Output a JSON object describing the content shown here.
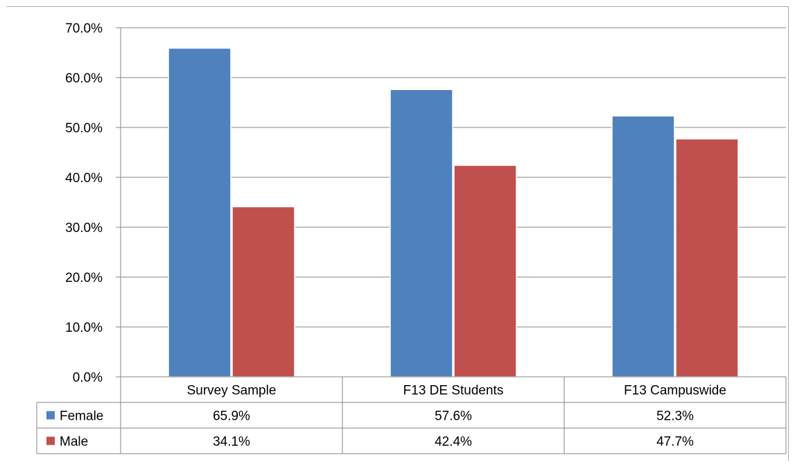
{
  "chart_data": {
    "type": "bar",
    "categories": [
      "Survey Sample",
      "F13 DE Students",
      "F13 Campuswide"
    ],
    "series": [
      {
        "name": "Female",
        "values": [
          65.9,
          57.6,
          52.3
        ],
        "labels": [
          "65.9%",
          "57.6%",
          "52.3%"
        ],
        "color": "#4F81BD"
      },
      {
        "name": "Male",
        "values": [
          34.1,
          42.4,
          47.7
        ],
        "labels": [
          "34.1%",
          "42.4%",
          "47.7%"
        ],
        "color": "#C0504D"
      }
    ],
    "y_ticks": [
      "0.0%",
      "10.0%",
      "20.0%",
      "30.0%",
      "40.0%",
      "50.0%",
      "60.0%",
      "70.0%"
    ],
    "ylim": [
      0,
      70
    ],
    "grid": true,
    "legend": "data-table",
    "title": "",
    "xlabel": "",
    "ylabel": ""
  }
}
